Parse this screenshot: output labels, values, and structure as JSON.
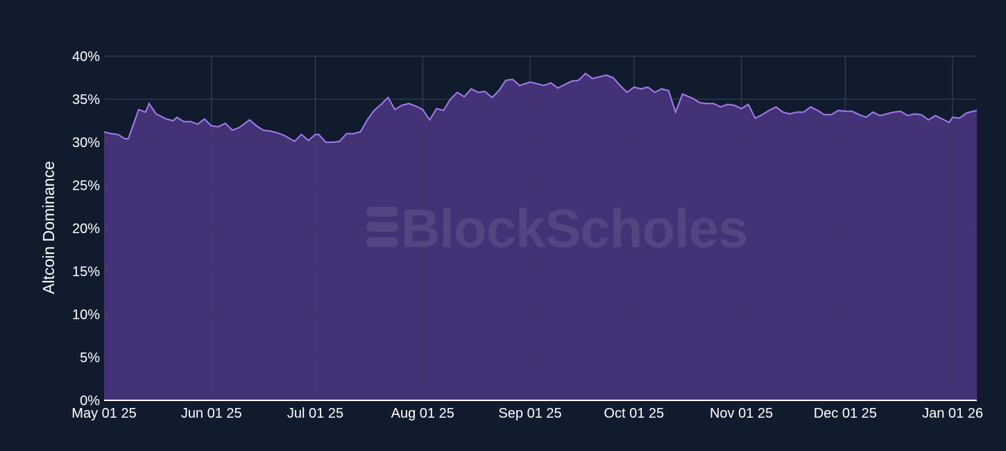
{
  "colors": {
    "background": "#111b2e",
    "plot_background": "#111b2e",
    "area_fill": "#47347a",
    "line": "#a57cf0",
    "gridline": "#3c4458",
    "text": "#ffffff"
  },
  "watermark": {
    "text": "BlockScholes",
    "icon": "blockscholes-logo-icon"
  },
  "chart_data": {
    "type": "area",
    "title": "",
    "xlabel": "",
    "ylabel": "Altcoin Dominance",
    "ylim": [
      0,
      40
    ],
    "xlim": [
      "2025-05-01",
      "2026-01-08"
    ],
    "y_unit": "%",
    "grid": true,
    "legend": "none",
    "y_ticks": [
      {
        "value": 0,
        "label": "0%"
      },
      {
        "value": 5,
        "label": "5%"
      },
      {
        "value": 10,
        "label": "10%"
      },
      {
        "value": 15,
        "label": "15%"
      },
      {
        "value": 20,
        "label": "20%"
      },
      {
        "value": 25,
        "label": "25%"
      },
      {
        "value": 30,
        "label": "30%"
      },
      {
        "value": 35,
        "label": "35%"
      },
      {
        "value": 40,
        "label": "40%"
      }
    ],
    "x_ticks": [
      {
        "value": "2025-05-01",
        "label": "May 01 25"
      },
      {
        "value": "2025-06-01",
        "label": "Jun 01 25"
      },
      {
        "value": "2025-07-01",
        "label": "Jul 01 25"
      },
      {
        "value": "2025-08-01",
        "label": "Aug 01 25"
      },
      {
        "value": "2025-09-01",
        "label": "Sep 01 25"
      },
      {
        "value": "2025-10-01",
        "label": "Oct 01 25"
      },
      {
        "value": "2025-11-01",
        "label": "Nov 01 25"
      },
      {
        "value": "2025-12-01",
        "label": "Dec 01 25"
      },
      {
        "value": "2026-01-01",
        "label": "Jan 01 26"
      }
    ],
    "series": [
      {
        "x": [
          "2025-05-01",
          "2025-05-03",
          "2025-05-05",
          "2025-05-07",
          "2025-05-08",
          "2025-05-11",
          "2025-05-13",
          "2025-05-14",
          "2025-05-16",
          "2025-05-17",
          "2025-05-19",
          "2025-05-21",
          "2025-05-22",
          "2025-05-24",
          "2025-05-26",
          "2025-05-28",
          "2025-05-30",
          "2025-06-01",
          "2025-06-03",
          "2025-06-05",
          "2025-06-07",
          "2025-06-09",
          "2025-06-12",
          "2025-06-14",
          "2025-06-16",
          "2025-06-18",
          "2025-06-20",
          "2025-06-22",
          "2025-06-25",
          "2025-06-27",
          "2025-06-29",
          "2025-07-01",
          "2025-07-02",
          "2025-07-04",
          "2025-07-06",
          "2025-07-08",
          "2025-07-10",
          "2025-07-12",
          "2025-07-14",
          "2025-07-16",
          "2025-07-18",
          "2025-07-20",
          "2025-07-22",
          "2025-07-24",
          "2025-07-26",
          "2025-07-28",
          "2025-07-30",
          "2025-08-01",
          "2025-08-03",
          "2025-08-05",
          "2025-08-07",
          "2025-08-09",
          "2025-08-11",
          "2025-08-13",
          "2025-08-15",
          "2025-08-17",
          "2025-08-19",
          "2025-08-21",
          "2025-08-23",
          "2025-08-25",
          "2025-08-27",
          "2025-08-29",
          "2025-09-01",
          "2025-09-03",
          "2025-09-05",
          "2025-09-07",
          "2025-09-09",
          "2025-09-11",
          "2025-09-13",
          "2025-09-15",
          "2025-09-17",
          "2025-09-19",
          "2025-09-21",
          "2025-09-23",
          "2025-09-25",
          "2025-09-27",
          "2025-09-29",
          "2025-10-01",
          "2025-10-03",
          "2025-10-05",
          "2025-10-07",
          "2025-10-09",
          "2025-10-11",
          "2025-10-13",
          "2025-10-15",
          "2025-10-18",
          "2025-10-20",
          "2025-10-22",
          "2025-10-24",
          "2025-10-26",
          "2025-10-28",
          "2025-10-30",
          "2025-11-01",
          "2025-11-03",
          "2025-11-05",
          "2025-11-07",
          "2025-11-09",
          "2025-11-11",
          "2025-11-13",
          "2025-11-15",
          "2025-11-17",
          "2025-11-19",
          "2025-11-21",
          "2025-11-23",
          "2025-11-25",
          "2025-11-27",
          "2025-11-29",
          "2025-12-01",
          "2025-12-03",
          "2025-12-05",
          "2025-12-07",
          "2025-12-09",
          "2025-12-11",
          "2025-12-13",
          "2025-12-15",
          "2025-12-17",
          "2025-12-19",
          "2025-12-21",
          "2025-12-23",
          "2025-12-25",
          "2025-12-27",
          "2025-12-29",
          "2025-12-31",
          "2026-01-01",
          "2026-01-03",
          "2026-01-05",
          "2026-01-08"
        ],
        "values": [
          31.2,
          31.0,
          30.9,
          30.4,
          30.4,
          33.8,
          33.5,
          34.5,
          33.3,
          33.1,
          32.7,
          32.5,
          32.9,
          32.4,
          32.4,
          32.1,
          32.7,
          31.9,
          31.8,
          32.2,
          31.4,
          31.7,
          32.6,
          31.9,
          31.4,
          31.3,
          31.1,
          30.8,
          30.1,
          30.9,
          30.2,
          30.9,
          30.9,
          30.0,
          30.0,
          30.1,
          31.0,
          31.0,
          31.2,
          32.6,
          33.7,
          34.4,
          35.2,
          33.8,
          34.3,
          34.5,
          34.2,
          33.8,
          32.6,
          33.9,
          33.7,
          35.0,
          35.8,
          35.3,
          36.2,
          35.8,
          35.9,
          35.2,
          36.0,
          37.2,
          37.3,
          36.6,
          37.0,
          36.8,
          36.6,
          36.9,
          36.3,
          36.7,
          37.1,
          37.2,
          38.0,
          37.4,
          37.6,
          37.8,
          37.5,
          36.6,
          35.8,
          36.4,
          36.2,
          36.4,
          35.8,
          36.2,
          36.0,
          33.5,
          35.6,
          35.1,
          34.6,
          34.5,
          34.5,
          34.1,
          34.4,
          34.3,
          33.9,
          34.4,
          32.8,
          33.2,
          33.7,
          34.1,
          33.5,
          33.3,
          33.5,
          33.5,
          34.1,
          33.7,
          33.2,
          33.2,
          33.7,
          33.6,
          33.6,
          33.2,
          32.9,
          33.5,
          33.1,
          33.3,
          33.5,
          33.6,
          33.1,
          33.3,
          33.2,
          32.6,
          33.1,
          32.7,
          32.3,
          32.9,
          32.8,
          33.4,
          33.7
        ]
      }
    ]
  }
}
